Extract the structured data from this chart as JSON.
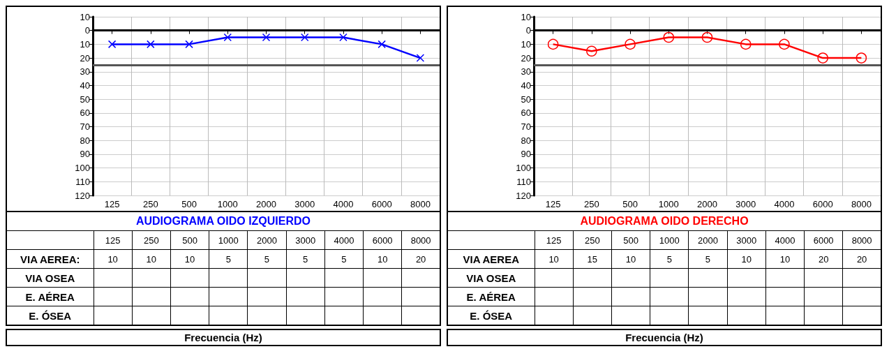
{
  "chart_data": [
    {
      "type": "line",
      "title": "AUDIOGRAMA OIDO IZQUIERDO",
      "xlabel": "Frecuencia (Hz)",
      "categories": [
        "125",
        "250",
        "500",
        "1000",
        "2000",
        "3000",
        "4000",
        "6000",
        "8000"
      ],
      "series": [
        {
          "name": "VIA AEREA:",
          "color": "#0000ff",
          "marker": "cross",
          "values": [
            10,
            10,
            10,
            5,
            5,
            5,
            5,
            10,
            20
          ]
        },
        {
          "name": "VIA OSEA",
          "values": [
            null,
            null,
            null,
            null,
            null,
            null,
            null,
            null,
            null
          ]
        },
        {
          "name": "E. AÉREA",
          "values": [
            null,
            null,
            null,
            null,
            null,
            null,
            null,
            null,
            null
          ]
        },
        {
          "name": "E. ÓSEA",
          "values": [
            null,
            null,
            null,
            null,
            null,
            null,
            null,
            null,
            null
          ]
        }
      ],
      "ylim": [
        120,
        -10
      ],
      "yticks": [
        {
          "value": -10,
          "label": "10"
        },
        0,
        10,
        20,
        30,
        40,
        50,
        60,
        70,
        80,
        90,
        100,
        110,
        120
      ],
      "grid": true,
      "data_labels": true,
      "ref_lines": [
        {
          "axis": "y",
          "value": 25,
          "color": "#555555"
        }
      ]
    },
    {
      "type": "line",
      "title": "AUDIOGRAMA OIDO DERECHO",
      "xlabel": "Frecuencia (Hz)",
      "categories": [
        "125",
        "250",
        "500",
        "1000",
        "2000",
        "3000",
        "4000",
        "6000",
        "8000"
      ],
      "series": [
        {
          "name": "VIA AEREA",
          "color": "#ff0000",
          "marker": "circle",
          "values": [
            10,
            15,
            10,
            5,
            5,
            10,
            10,
            20,
            20
          ]
        },
        {
          "name": "VIA OSEA",
          "values": [
            null,
            null,
            null,
            null,
            null,
            null,
            null,
            null,
            null
          ]
        },
        {
          "name": "E. AÉREA",
          "values": [
            null,
            null,
            null,
            null,
            null,
            null,
            null,
            null,
            null
          ]
        },
        {
          "name": "E. ÓSEA",
          "values": [
            null,
            null,
            null,
            null,
            null,
            null,
            null,
            null,
            null
          ]
        }
      ],
      "ylim": [
        120,
        -10
      ],
      "yticks": [
        {
          "value": -10,
          "label": "10"
        },
        0,
        10,
        20,
        30,
        40,
        50,
        60,
        70,
        80,
        90,
        100,
        110,
        120
      ],
      "grid": true,
      "data_labels": true,
      "ref_lines": [
        {
          "axis": "y",
          "value": 25,
          "color": "#555555"
        }
      ]
    }
  ]
}
